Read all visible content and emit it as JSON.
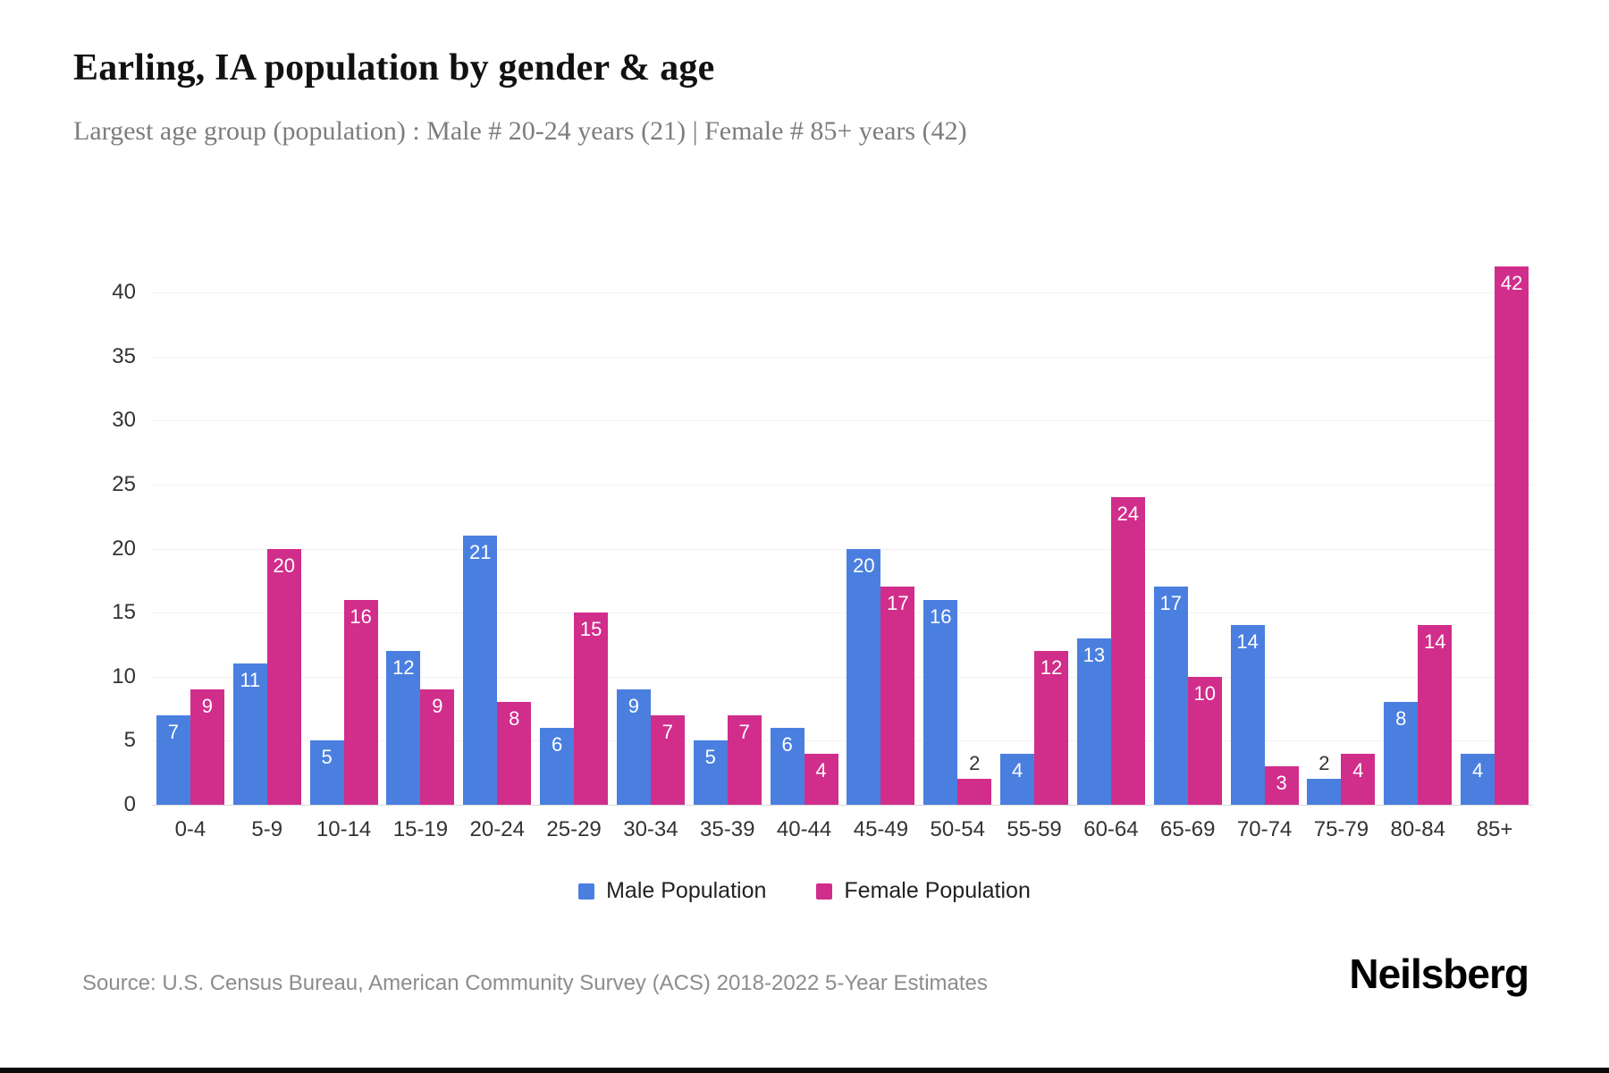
{
  "header": {
    "title": "Earling, IA population by gender & age",
    "subtitle": "Largest age group (population) : Male # 20-24 years (21) | Female # 85+ years (42)"
  },
  "chart_data": {
    "type": "bar",
    "title": "Earling, IA population by gender & age",
    "subtitle": "Largest age group (population) : Male # 20-24 years (21) | Female # 85+ years (42)",
    "categories": [
      "0-4",
      "5-9",
      "10-14",
      "15-19",
      "20-24",
      "25-29",
      "30-34",
      "35-39",
      "40-44",
      "45-49",
      "50-54",
      "55-59",
      "60-64",
      "65-69",
      "70-74",
      "75-79",
      "80-84",
      "85+"
    ],
    "series": [
      {
        "name": "Male Population",
        "color": "#4a7fe0",
        "values": [
          7,
          11,
          5,
          12,
          21,
          6,
          9,
          5,
          6,
          20,
          16,
          4,
          13,
          17,
          14,
          2,
          8,
          4
        ]
      },
      {
        "name": "Female Population",
        "color": "#d12d8b",
        "values": [
          9,
          20,
          16,
          9,
          8,
          15,
          7,
          7,
          4,
          17,
          2,
          12,
          24,
          10,
          3,
          4,
          14,
          42
        ]
      }
    ],
    "xlabel": "",
    "ylabel": "",
    "yticks": [
      0,
      5,
      10,
      15,
      20,
      25,
      30,
      35,
      40
    ],
    "ylim": [
      0,
      42
    ],
    "grid": true,
    "legend_position": "bottom",
    "value_labels": true,
    "small_value_label_color": "#333333",
    "inside_value_label_color": "#ffffff"
  },
  "footer": {
    "source": "Source: U.S. Census Bureau, American Community Survey (ACS) 2018-2022 5-Year Estimates",
    "brand": "Neilsberg"
  }
}
